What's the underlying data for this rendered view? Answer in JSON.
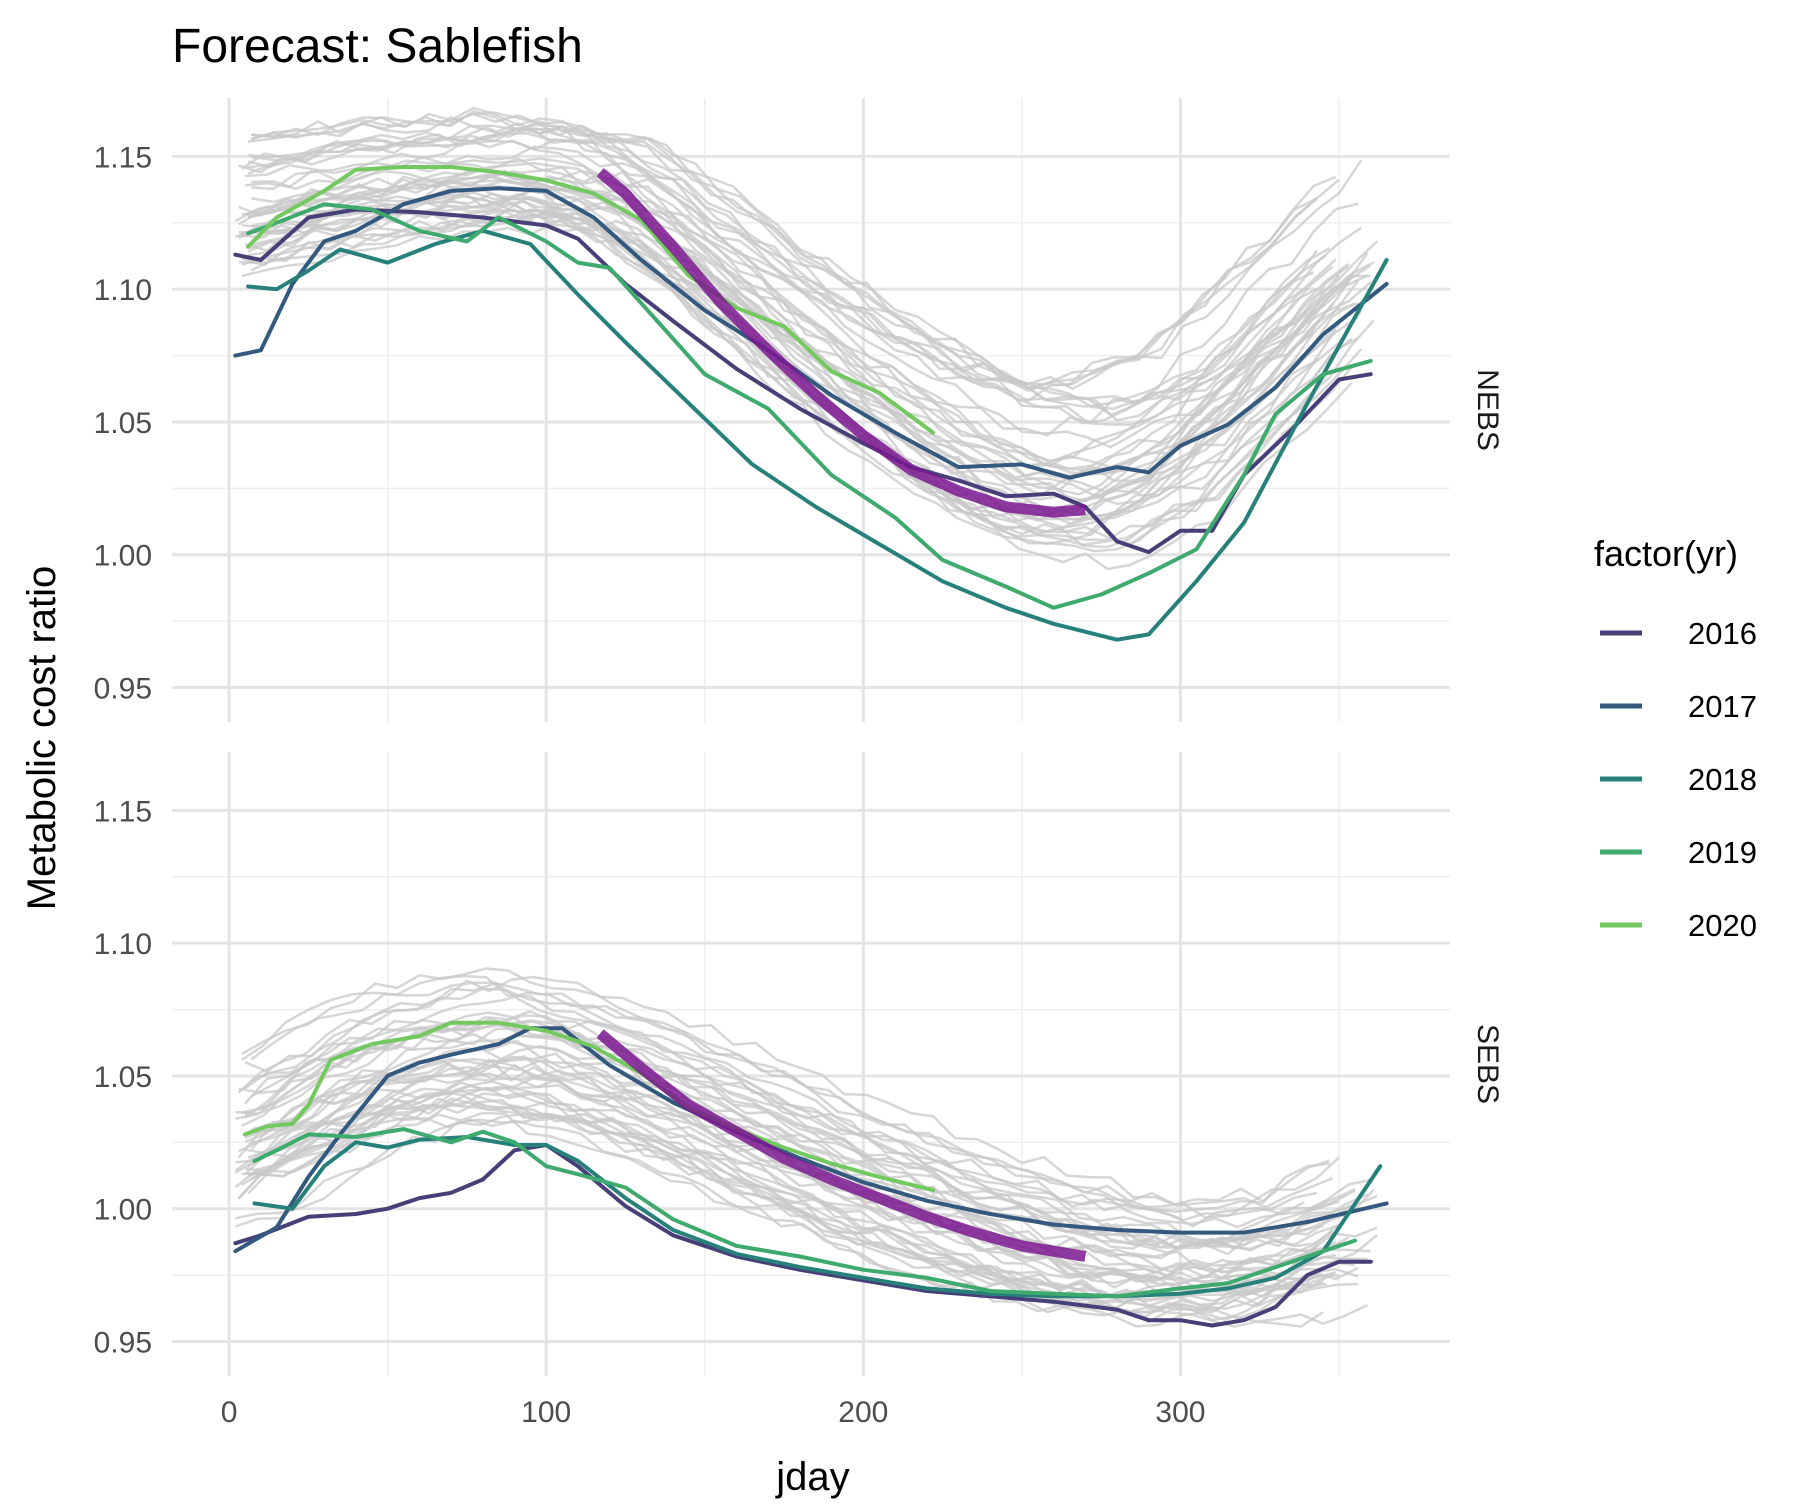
{
  "chart_data": {
    "type": "line",
    "title": "Forecast: Sablefish",
    "xlabel": "jday",
    "ylabel": "Metabolic cost ratio",
    "xlim": [
      -18,
      385
    ],
    "ylim": [
      0.937,
      1.172
    ],
    "x_ticks": [
      0,
      100,
      200,
      300
    ],
    "y_ticks": [
      0.95,
      1.0,
      1.05,
      1.1,
      1.15
    ],
    "grid": true,
    "legend": {
      "title": "factor(yr)",
      "position": "right",
      "entries": [
        "2016",
        "2017",
        "2018",
        "2019",
        "2020"
      ]
    },
    "colors": {
      "2016": "#463F78",
      "2017": "#33597F",
      "2018": "#27807A",
      "2019": "#3FAA6E",
      "2020": "#74C860",
      "forecast": "#7B1890",
      "history": "#C8C8C8",
      "grid_major": "#E4E4E4",
      "grid_minor": "#EFEFEF"
    },
    "panels": [
      {
        "strip": "NEBS",
        "background_band": {
          "x": [
            2,
            30,
            60,
            90,
            120,
            150,
            180,
            210,
            240,
            270,
            300,
            330,
            365
          ],
          "center": [
            1.13,
            1.137,
            1.142,
            1.145,
            1.14,
            1.115,
            1.085,
            1.06,
            1.038,
            1.03,
            1.045,
            1.08,
            1.12
          ],
          "spread": [
            0.026,
            0.024,
            0.022,
            0.022,
            0.023,
            0.026,
            0.03,
            0.034,
            0.036,
            0.035,
            0.032,
            0.03,
            0.028
          ]
        },
        "series": [
          {
            "name": "2016",
            "x": [
              2,
              10,
              25,
              40,
              60,
              80,
              100,
              110,
              125,
              140,
              160,
              180,
              200,
              215,
              230,
              245,
              260,
              270,
              280,
              290,
              300,
              310,
              320,
              335,
              350,
              360
            ],
            "y": [
              1.113,
              1.111,
              1.127,
              1.13,
              1.129,
              1.127,
              1.124,
              1.119,
              1.102,
              1.088,
              1.07,
              1.055,
              1.042,
              1.033,
              1.028,
              1.022,
              1.023,
              1.018,
              1.005,
              1.001,
              1.009,
              1.009,
              1.03,
              1.047,
              1.066,
              1.068
            ]
          },
          {
            "name": "2017",
            "x": [
              2,
              10,
              20,
              30,
              40,
              55,
              70,
              85,
              100,
              115,
              130,
              150,
              170,
              190,
              210,
              230,
              250,
              265,
              280,
              290,
              300,
              315,
              330,
              345,
              365
            ],
            "y": [
              1.075,
              1.077,
              1.102,
              1.118,
              1.122,
              1.132,
              1.137,
              1.138,
              1.137,
              1.127,
              1.111,
              1.092,
              1.077,
              1.06,
              1.046,
              1.033,
              1.034,
              1.029,
              1.033,
              1.031,
              1.041,
              1.049,
              1.063,
              1.083,
              1.102
            ]
          },
          {
            "name": "2018",
            "x": [
              6,
              15,
              25,
              35,
              50,
              65,
              80,
              95,
              110,
              125,
              145,
              165,
              185,
              205,
              225,
              245,
              260,
              280,
              290,
              305,
              320,
              340,
              365
            ],
            "y": [
              1.101,
              1.1,
              1.107,
              1.115,
              1.11,
              1.117,
              1.122,
              1.117,
              1.098,
              1.08,
              1.057,
              1.034,
              1.018,
              1.004,
              0.99,
              0.98,
              0.974,
              0.968,
              0.97,
              0.99,
              1.012,
              1.057,
              1.111
            ]
          },
          {
            "name": "2019",
            "x": [
              6,
              15,
              30,
              45,
              60,
              75,
              85,
              100,
              110,
              120,
              135,
              150,
              170,
              190,
              210,
              225,
              245,
              260,
              275,
              290,
              305,
              320,
              330,
              345,
              360
            ],
            "y": [
              1.121,
              1.125,
              1.132,
              1.13,
              1.122,
              1.118,
              1.127,
              1.118,
              1.11,
              1.108,
              1.088,
              1.068,
              1.055,
              1.03,
              1.014,
              0.998,
              0.988,
              0.98,
              0.985,
              0.993,
              1.002,
              1.03,
              1.053,
              1.068,
              1.073
            ]
          },
          {
            "name": "2020",
            "x": [
              6,
              15,
              30,
              40,
              55,
              70,
              85,
              100,
              115,
              130,
              145,
              160,
              175,
              190,
              205,
              222
            ],
            "y": [
              1.116,
              1.127,
              1.137,
              1.145,
              1.146,
              1.146,
              1.144,
              1.141,
              1.136,
              1.126,
              1.105,
              1.093,
              1.086,
              1.069,
              1.061,
              1.046
            ]
          }
        ],
        "forecast": {
          "x": [
            117,
            125,
            140,
            155,
            170,
            185,
            200,
            215,
            230,
            245,
            260,
            270
          ],
          "y": [
            1.144,
            1.136,
            1.116,
            1.095,
            1.077,
            1.06,
            1.045,
            1.032,
            1.024,
            1.018,
            1.016,
            1.017
          ]
        }
      },
      {
        "strip": "SEBS",
        "background_band": {
          "x": [
            2,
            30,
            60,
            90,
            120,
            150,
            180,
            210,
            240,
            270,
            300,
            330,
            365
          ],
          "center": [
            1.025,
            1.045,
            1.058,
            1.062,
            1.052,
            1.038,
            1.022,
            1.008,
            0.995,
            0.985,
            0.98,
            0.983,
            1.0
          ],
          "spread": [
            0.03,
            0.032,
            0.03,
            0.028,
            0.026,
            0.026,
            0.026,
            0.026,
            0.025,
            0.024,
            0.023,
            0.024,
            0.03
          ]
        },
        "series": [
          {
            "name": "2016",
            "x": [
              2,
              10,
              25,
              40,
              50,
              60,
              70,
              80,
              90,
              100,
              110,
              125,
              140,
              160,
              180,
              200,
              220,
              240,
              260,
              280,
              290,
              300,
              310,
              320,
              330,
              340,
              350,
              360
            ],
            "y": [
              0.987,
              0.99,
              0.997,
              0.998,
              1.0,
              1.004,
              1.006,
              1.011,
              1.022,
              1.024,
              1.016,
              1.001,
              0.99,
              0.982,
              0.977,
              0.973,
              0.969,
              0.967,
              0.965,
              0.962,
              0.958,
              0.958,
              0.956,
              0.958,
              0.963,
              0.975,
              0.98,
              0.98
            ]
          },
          {
            "name": "2017",
            "x": [
              2,
              15,
              25,
              35,
              50,
              60,
              70,
              85,
              95,
              105,
              120,
              140,
              160,
              180,
              200,
              220,
              240,
              260,
              280,
              300,
              320,
              340,
              365
            ],
            "y": [
              0.984,
              0.993,
              1.012,
              1.028,
              1.05,
              1.055,
              1.058,
              1.062,
              1.068,
              1.068,
              1.054,
              1.04,
              1.029,
              1.019,
              1.01,
              1.003,
              0.998,
              0.994,
              0.992,
              0.991,
              0.991,
              0.995,
              1.002
            ]
          },
          {
            "name": "2018",
            "x": [
              8,
              20,
              30,
              40,
              50,
              60,
              75,
              90,
              100,
              110,
              125,
              140,
              160,
              180,
              200,
              220,
              240,
              260,
              280,
              300,
              315,
              330,
              345,
              363
            ],
            "y": [
              1.002,
              1.0,
              1.016,
              1.025,
              1.023,
              1.026,
              1.027,
              1.024,
              1.024,
              1.018,
              1.004,
              0.992,
              0.983,
              0.978,
              0.974,
              0.97,
              0.968,
              0.967,
              0.967,
              0.968,
              0.97,
              0.974,
              0.984,
              1.016
            ]
          },
          {
            "name": "2019",
            "x": [
              8,
              15,
              25,
              40,
              55,
              70,
              80,
              90,
              100,
              110,
              125,
              140,
              160,
              180,
              200,
              220,
              240,
              260,
              280,
              300,
              315,
              330,
              345,
              355
            ],
            "y": [
              1.018,
              1.022,
              1.028,
              1.027,
              1.03,
              1.025,
              1.029,
              1.025,
              1.016,
              1.013,
              1.008,
              0.996,
              0.986,
              0.982,
              0.977,
              0.974,
              0.969,
              0.968,
              0.967,
              0.97,
              0.972,
              0.978,
              0.984,
              0.988
            ]
          },
          {
            "name": "2020",
            "x": [
              5,
              12,
              20,
              25,
              32,
              45,
              60,
              70,
              85,
              100,
              115,
              130,
              145,
              160,
              175,
              190,
              205,
              222
            ],
            "y": [
              1.028,
              1.031,
              1.032,
              1.039,
              1.056,
              1.062,
              1.065,
              1.07,
              1.07,
              1.067,
              1.061,
              1.051,
              1.038,
              1.03,
              1.023,
              1.017,
              1.012,
              1.007
            ]
          }
        ],
        "forecast": {
          "x": [
            117,
            130,
            145,
            160,
            175,
            190,
            205,
            220,
            235,
            250,
            270
          ],
          "y": [
            1.066,
            1.053,
            1.039,
            1.029,
            1.019,
            1.011,
            1.004,
            0.997,
            0.991,
            0.986,
            0.982
          ]
        }
      }
    ]
  }
}
